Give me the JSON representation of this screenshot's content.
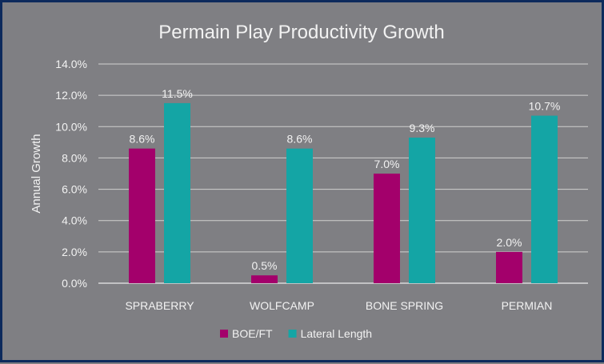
{
  "chart_data": {
    "type": "bar",
    "title": "Permain Play Productivity Growth",
    "xlabel": "",
    "ylabel": "Annual Growth",
    "ylim": [
      0,
      14
    ],
    "yticks": [
      "0.0%",
      "2.0%",
      "4.0%",
      "6.0%",
      "8.0%",
      "10.0%",
      "12.0%",
      "14.0%"
    ],
    "grid": true,
    "legend": "bottom",
    "categories": [
      "SPRABERRY",
      "WOLFCAMP",
      "BONE SPRING",
      "PERMIAN"
    ],
    "series": [
      {
        "name": "BOE/FT",
        "color": "#a3006b",
        "values": [
          8.6,
          0.5,
          7.0,
          2.0
        ],
        "labels": [
          "8.6%",
          "0.5%",
          "7.0%",
          "2.0%"
        ]
      },
      {
        "name": "Lateral Length",
        "color": "#14a5a5",
        "values": [
          11.5,
          8.6,
          9.3,
          10.7
        ],
        "labels": [
          "11.5%",
          "8.6%",
          "9.3%",
          "10.7%"
        ]
      }
    ]
  }
}
